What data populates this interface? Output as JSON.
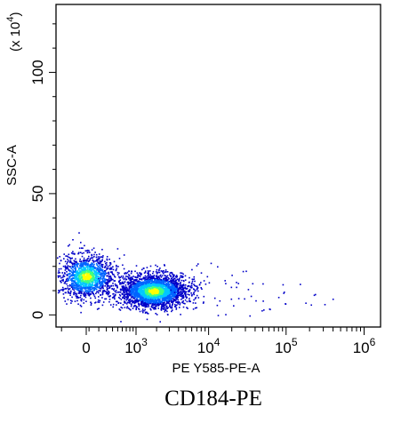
{
  "chart_data": {
    "type": "scatter",
    "title": "",
    "caption": "CD184-PE",
    "xlabel": "PE Y585-PE-A",
    "ylabel": "SSC-A",
    "y_multiplier_label": "(x 10",
    "y_multiplier_exp": "4",
    "y_multiplier_close": ")",
    "x_scale": "biexponential",
    "ylim": [
      -5,
      128
    ],
    "x_ticks": [
      {
        "base": "0",
        "exp": ""
      },
      {
        "base": "10",
        "exp": "3"
      },
      {
        "base": "10",
        "exp": "4"
      },
      {
        "base": "10",
        "exp": "5"
      },
      {
        "base": "10",
        "exp": "6"
      }
    ],
    "y_ticks": [
      "0",
      "50",
      "100"
    ],
    "y_tick_values": [
      0,
      50,
      100
    ],
    "grid": false,
    "legend": "none",
    "density_colormap": [
      "#0000c8",
      "#0064ff",
      "#00c8ff",
      "#40ff80",
      "#ffff00"
    ],
    "populations": [
      {
        "name": "",
        "x_center": 0,
        "x_spread": 0.18,
        "y_center": 16,
        "y_spread": 4.5,
        "count": 1400
      },
      {
        "name": "",
        "x_center": 1800,
        "x_spread": 0.22,
        "y_center": 10,
        "y_spread": 3.5,
        "count": 2600
      },
      {
        "name": "",
        "x_center": 20000,
        "x_spread": 0.6,
        "y_center": 9,
        "y_spread": 6,
        "count": 60
      }
    ]
  }
}
